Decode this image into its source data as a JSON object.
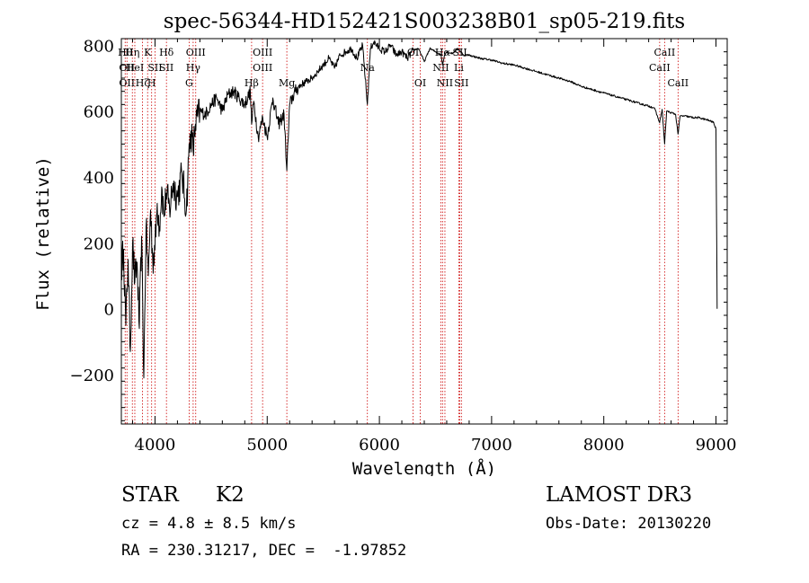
{
  "chart_data": {
    "type": "line",
    "title": "spec-56344-HD152421S003238B01_sp05-219.fits",
    "xlabel": "Wavelength (Å)",
    "ylabel": "Flux (relative)",
    "xlim": [
      3700,
      9100
    ],
    "ylim": [
      -350,
      820
    ],
    "x_ticks": [
      4000,
      5000,
      6000,
      7000,
      8000,
      9000
    ],
    "y_ticks": [
      -200,
      0,
      200,
      400,
      600,
      800
    ],
    "series": [
      {
        "name": "flux",
        "x": [
          3700,
          3720,
          3740,
          3760,
          3780,
          3800,
          3820,
          3840,
          3860,
          3880,
          3900,
          3920,
          3940,
          3960,
          3980,
          4000,
          4020,
          4040,
          4060,
          4080,
          4100,
          4130,
          4160,
          4200,
          4240,
          4280,
          4300,
          4320,
          4340,
          4360,
          4400,
          4450,
          4500,
          4550,
          4600,
          4650,
          4700,
          4750,
          4800,
          4850,
          4861,
          4880,
          4920,
          4960,
          5000,
          5050,
          5100,
          5150,
          5175,
          5200,
          5250,
          5300,
          5350,
          5400,
          5450,
          5500,
          5550,
          5600,
          5650,
          5700,
          5750,
          5800,
          5850,
          5893,
          5920,
          5950,
          6000,
          6050,
          6100,
          6150,
          6200,
          6250,
          6300,
          6350,
          6400,
          6450,
          6500,
          6550,
          6563,
          6580,
          6600,
          6650,
          6700,
          6750,
          6800,
          6900,
          7000,
          7100,
          7200,
          7300,
          7400,
          7500,
          7600,
          7700,
          7800,
          7900,
          8000,
          8100,
          8200,
          8300,
          8400,
          8450,
          8498,
          8520,
          8542,
          8560,
          8600,
          8640,
          8662,
          8680,
          8720,
          8800,
          8850,
          8900,
          8950,
          8980,
          9000,
          9010
        ],
        "y": [
          120,
          180,
          -50,
          150,
          -130,
          200,
          80,
          140,
          -60,
          220,
          -210,
          250,
          100,
          300,
          150,
          180,
          320,
          250,
          370,
          280,
          350,
          300,
          380,
          340,
          410,
          300,
          460,
          540,
          480,
          560,
          600,
          590,
          620,
          640,
          600,
          650,
          660,
          640,
          620,
          660,
          560,
          630,
          520,
          580,
          520,
          640,
          560,
          590,
          420,
          620,
          660,
          680,
          690,
          700,
          720,
          740,
          760,
          730,
          770,
          780,
          790,
          760,
          800,
          620,
          790,
          810,
          790,
          780,
          800,
          770,
          780,
          760,
          785,
          790,
          750,
          790,
          780,
          770,
          740,
          770,
          780,
          775,
          790,
          770,
          770,
          760,
          755,
          745,
          740,
          730,
          720,
          710,
          700,
          690,
          675,
          665,
          655,
          645,
          635,
          625,
          615,
          610,
          565,
          605,
          500,
          600,
          595,
          590,
          530,
          585,
          585,
          580,
          580,
          575,
          570,
          565,
          545,
          0
        ]
      }
    ],
    "line_labels": [
      {
        "wl": 3734,
        "label": "Hθ",
        "row": 1
      },
      {
        "wl": 3750,
        "label": "OII",
        "row": 2
      },
      {
        "wl": 3750,
        "label": "OII",
        "row": 3
      },
      {
        "wl": 3798,
        "label": "Hη",
        "row": 1
      },
      {
        "wl": 3820,
        "label": "HeI",
        "row": 2
      },
      {
        "wl": 3889,
        "label": "Hζ",
        "row": 3
      },
      {
        "wl": 3934,
        "label": "K",
        "row": 1
      },
      {
        "wl": 3970,
        "label": "H",
        "row": 3
      },
      {
        "wl": 4000,
        "label": "SII",
        "row": 2
      },
      {
        "wl": 4102,
        "label": "Hδ",
        "row": 1
      },
      {
        "wl": 4102,
        "label": "SII",
        "row": 2
      },
      {
        "wl": 4304,
        "label": "G",
        "row": 3
      },
      {
        "wl": 4340,
        "label": "Hγ",
        "row": 2
      },
      {
        "wl": 4363,
        "label": "OIII",
        "row": 1
      },
      {
        "wl": 4861,
        "label": "Hβ",
        "row": 3
      },
      {
        "wl": 4959,
        "label": "OIII",
        "row": 1
      },
      {
        "wl": 4959,
        "label": "OIII",
        "row": 2
      },
      {
        "wl": 5175,
        "label": "Mg",
        "row": 3
      },
      {
        "wl": 5893,
        "label": "Na",
        "row": 2
      },
      {
        "wl": 6300,
        "label": "OI",
        "row": 1
      },
      {
        "wl": 6364,
        "label": "OI",
        "row": 3
      },
      {
        "wl": 6563,
        "label": "Hα",
        "row": 1
      },
      {
        "wl": 6548,
        "label": "NII",
        "row": 2
      },
      {
        "wl": 6584,
        "label": "NII",
        "row": 3
      },
      {
        "wl": 6717,
        "label": "SII",
        "row": 1
      },
      {
        "wl": 6708,
        "label": "Li",
        "row": 2
      },
      {
        "wl": 6731,
        "label": "SII",
        "row": 3
      },
      {
        "wl": 8498,
        "label": "CaII",
        "row": 2
      },
      {
        "wl": 8542,
        "label": "CaII",
        "row": 1
      },
      {
        "wl": 8662,
        "label": "CaII",
        "row": 3
      }
    ]
  },
  "footer": {
    "object_class": "STAR",
    "subclass": "K2",
    "survey": "LAMOST DR3",
    "cz": "cz = 4.8 ± 8.5 km/s",
    "obs_date": "Obs-Date: 20130220",
    "coords": "RA = 230.31217, DEC =  -1.97852"
  },
  "colors": {
    "line": "#000000",
    "marker": "#cc0000",
    "axis": "#000000"
  }
}
